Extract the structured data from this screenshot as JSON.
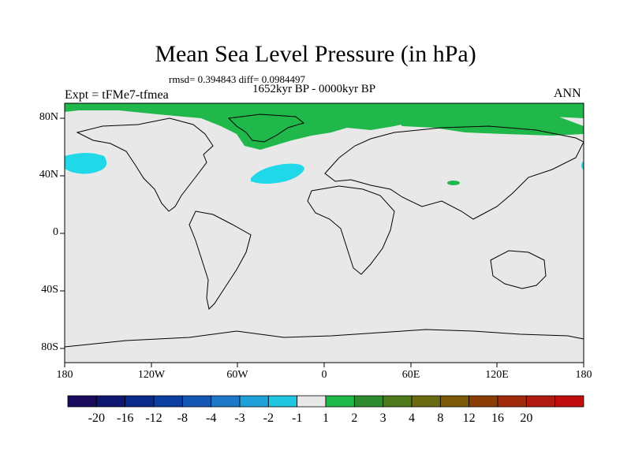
{
  "title": "Mean Sea Level Pressure (in hPa)",
  "stats": "rmsd= 0.394843 diff= 0.0984497",
  "period": "1652kyr BP - 0000kyr BP",
  "experiment": "Expt = tFMe7-tfmea",
  "season": "ANN",
  "y_ticks": [
    "80N",
    "40N",
    "0",
    "40S",
    "80S"
  ],
  "x_ticks": [
    "180",
    "120W",
    "60W",
    "0",
    "60E",
    "120E",
    "180"
  ],
  "colorbar": {
    "colors": [
      "#1a0a5c",
      "#0f1670",
      "#0a2a8a",
      "#0a3ea0",
      "#1457b4",
      "#1e78c8",
      "#1fa0d8",
      "#20c6e0",
      "#e8e8e8",
      "#20b84a",
      "#2e8a2e",
      "#4e7a1c",
      "#6a6a10",
      "#7a5a08",
      "#8a3e06",
      "#a02a0a",
      "#b01a10",
      "#c00c0c"
    ],
    "labels": [
      "-20",
      "-16",
      "-12",
      "-8",
      "-4",
      "-3",
      "-2",
      "-1",
      "1",
      "2",
      "3",
      "4",
      "8",
      "12",
      "16",
      "20"
    ]
  },
  "map_colors": {
    "background": "#e8e8e8",
    "positive": "#20b84a",
    "negative": "#20d8e8"
  }
}
